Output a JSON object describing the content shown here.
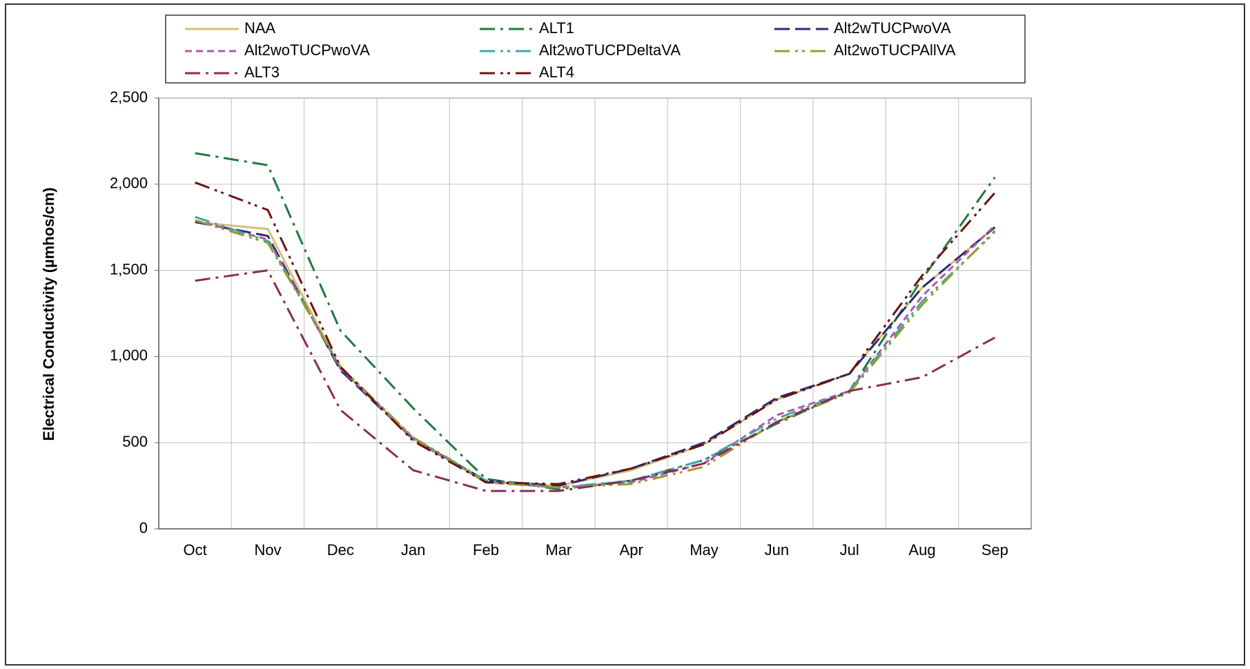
{
  "chart_data": {
    "type": "line",
    "y_label": "Electrical Conductivity (µmhos/cm)",
    "categories": [
      "Oct",
      "Nov",
      "Dec",
      "Jan",
      "Feb",
      "Mar",
      "Apr",
      "May",
      "Jun",
      "Jul",
      "Aug",
      "Sep"
    ],
    "series": [
      {
        "name": "NAA",
        "color": "#d4bf72",
        "dash": "solid",
        "values": [
          1780,
          1740,
          930,
          530,
          270,
          250,
          340,
          490,
          750,
          900,
          1400,
          1750
        ]
      },
      {
        "name": "ALT1",
        "color": "#1f7a3c",
        "dash": "dashdot",
        "values": [
          2180,
          2110,
          1150,
          700,
          290,
          230,
          280,
          400,
          610,
          800,
          1450,
          2040
        ]
      },
      {
        "name": "Alt2wTUCPwoVA",
        "color": "#2b2a78",
        "dash": "longdash",
        "values": [
          1780,
          1700,
          920,
          520,
          280,
          250,
          350,
          500,
          760,
          900,
          1400,
          1750
        ]
      },
      {
        "name": "Alt2woTUCPwoVA",
        "color": "#b257aa",
        "dash": "dash",
        "values": [
          1790,
          1680,
          930,
          520,
          270,
          240,
          270,
          380,
          660,
          800,
          1350,
          1760
        ]
      },
      {
        "name": "Alt2woTUCPDeltaVA",
        "color": "#3ba9a6",
        "dash": "dashdotdot",
        "values": [
          1810,
          1670,
          940,
          530,
          280,
          240,
          280,
          400,
          640,
          800,
          1320,
          1720
        ]
      },
      {
        "name": "Alt2woTUCPAllVA",
        "color": "#9c9a2c",
        "dash": "dashdotdot",
        "values": [
          1790,
          1660,
          940,
          530,
          270,
          240,
          260,
          360,
          620,
          790,
          1300,
          1730
        ]
      },
      {
        "name": "ALT3",
        "color": "#8a2b5c",
        "dash": "dashdot",
        "values": [
          1440,
          1500,
          690,
          340,
          220,
          220,
          280,
          380,
          620,
          800,
          880,
          1110
        ]
      },
      {
        "name": "ALT4",
        "color": "#6a1212",
        "dash": "dashdotdot",
        "values": [
          2010,
          1850,
          940,
          510,
          270,
          260,
          350,
          490,
          750,
          900,
          1470,
          1950
        ]
      }
    ],
    "ylim": [
      0,
      2500
    ],
    "yticks": [
      0,
      500,
      {
        "value": 1000,
        "label": "1,000"
      },
      {
        "value": 1500,
        "label": "1,500"
      },
      {
        "value": 2000,
        "label": "2,000"
      },
      {
        "value": 2500,
        "label": "2,500"
      }
    ],
    "grid": true,
    "legend": "top"
  }
}
